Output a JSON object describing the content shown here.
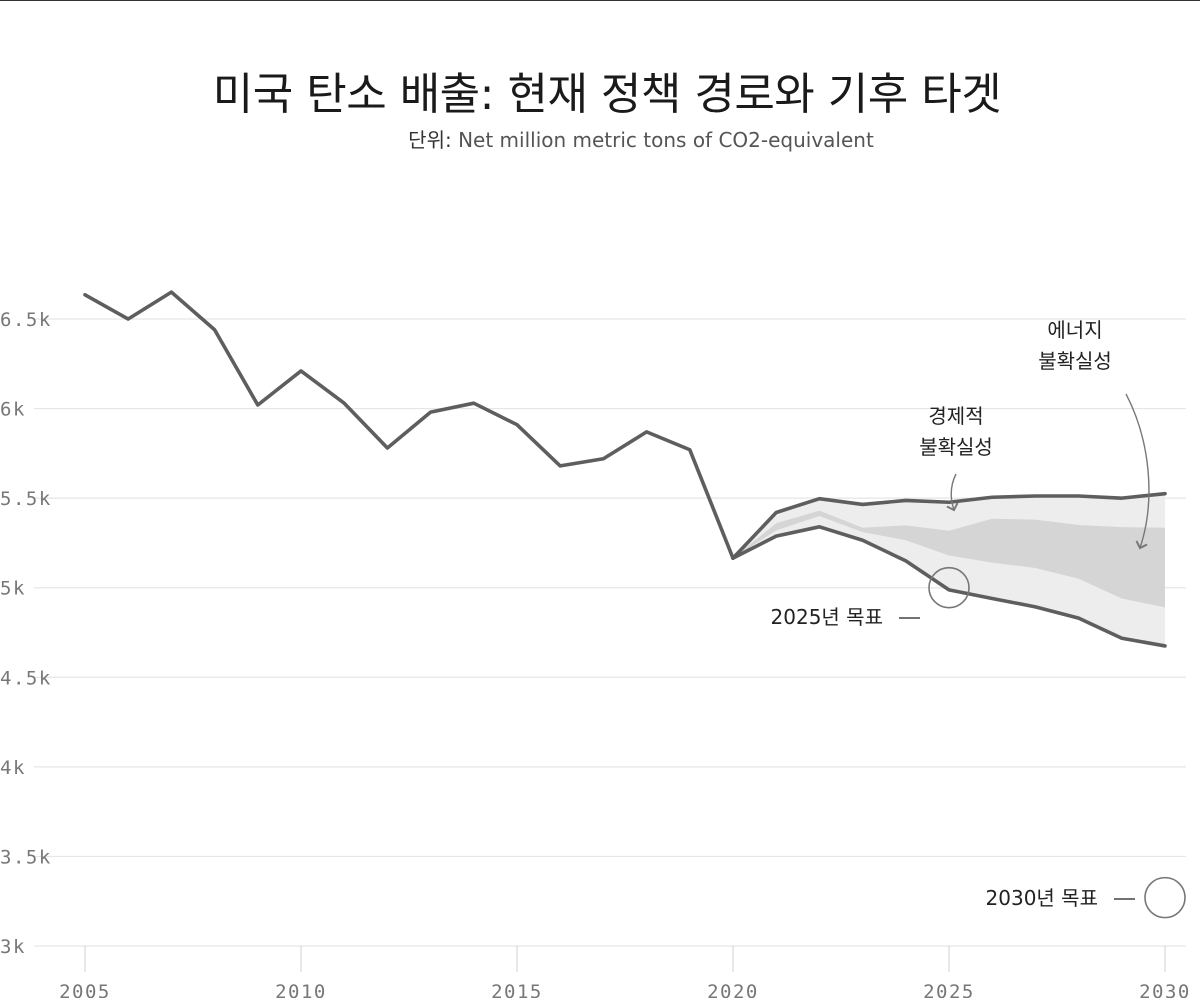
{
  "chart_data": {
    "type": "line",
    "title": "미국 탄소 배출: 현재 정책 경로와 기후 타겟",
    "subtitle": {
      "prefix": "단위:",
      "text": "Net million metric tons of CO2-equivalent"
    },
    "x_ticks": [
      2005,
      2010,
      2015,
      2020,
      2025,
      2030
    ],
    "x_tick_labels": [
      "2005",
      "2010",
      "2015",
      "2020",
      "2025",
      "2030"
    ],
    "y_ticks": [
      3000,
      3500,
      4000,
      4500,
      5000,
      5500,
      6000,
      6500
    ],
    "y_tick_labels": [
      "3k",
      "3.5k",
      "4k",
      "4.5k",
      "5k",
      "5.5k",
      "6k",
      "6.5k"
    ],
    "xlim": [
      2005,
      2030
    ],
    "ylim": [
      3000,
      6500
    ],
    "colors": {
      "line": "#5e5e5e",
      "outer_band": "#ededed",
      "inner_band": "#d5d5d5",
      "grid": "#e6e6e6",
      "target_circle": "#777777"
    },
    "series": [
      {
        "name": "historical",
        "x": [
          2005,
          2006,
          2007,
          2008,
          2009,
          2010,
          2011,
          2012,
          2013,
          2014,
          2015,
          2016,
          2017,
          2018,
          2019,
          2020
        ],
        "values": [
          6635,
          6500,
          6650,
          6440,
          6020,
          6210,
          6030,
          5780,
          5980,
          6030,
          5910,
          5680,
          5720,
          5870,
          5770,
          5165
        ]
      },
      {
        "name": "projection-high",
        "x": [
          2020,
          2021,
          2022,
          2023,
          2024,
          2025,
          2026,
          2027,
          2028,
          2029,
          2030
        ],
        "values": [
          5165,
          5420,
          5497,
          5465,
          5487,
          5477,
          5505,
          5512,
          5512,
          5500,
          5525
        ]
      },
      {
        "name": "projection-low",
        "x": [
          2020,
          2021,
          2022,
          2023,
          2024,
          2025,
          2026,
          2027,
          2028,
          2029,
          2030
        ],
        "values": [
          5165,
          5288,
          5340,
          5265,
          5150,
          4988,
          4940,
          4893,
          4830,
          4718,
          4675
        ]
      }
    ],
    "bands": [
      {
        "name": "outer-range",
        "x": [
          2020,
          2021,
          2022,
          2023,
          2024,
          2025,
          2026,
          2027,
          2028,
          2029,
          2030
        ],
        "upper": [
          5165,
          5420,
          5497,
          5465,
          5487,
          5477,
          5505,
          5512,
          5512,
          5500,
          5525
        ],
        "lower": [
          5165,
          5288,
          5340,
          5265,
          5150,
          4988,
          4940,
          4893,
          4830,
          4718,
          4675
        ]
      },
      {
        "name": "inner-range",
        "x": [
          2020,
          2021,
          2022,
          2023,
          2024,
          2025,
          2026,
          2027,
          2028,
          2029,
          2030
        ],
        "upper": [
          5165,
          5360,
          5430,
          5335,
          5348,
          5318,
          5385,
          5380,
          5350,
          5338,
          5335
        ],
        "lower": [
          5165,
          5320,
          5400,
          5310,
          5265,
          5180,
          5140,
          5110,
          5050,
          4940,
          4890
        ]
      }
    ],
    "targets": [
      {
        "label": "2025년 목표",
        "x": 2025,
        "y": 5000
      },
      {
        "label": "2030년 목표",
        "x": 2030,
        "y": 3270
      }
    ],
    "annotations": [
      {
        "lines": [
          "경제적",
          "불확실성"
        ]
      },
      {
        "lines": [
          "에너지",
          "불확실성"
        ]
      }
    ]
  }
}
